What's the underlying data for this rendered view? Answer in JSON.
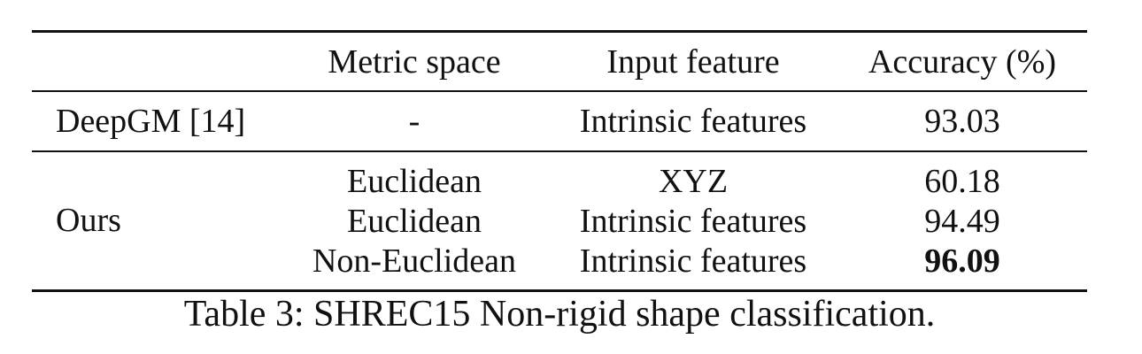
{
  "table": {
    "headers": {
      "method": "",
      "metric_space": "Metric space",
      "input_feature": "Input feature",
      "accuracy": "Accuracy (%)"
    },
    "rows": [
      {
        "method": "DeepGM [14]",
        "metric_space": "-",
        "input_feature": "Intrinsic features",
        "accuracy": "93.03"
      },
      {
        "method": "Ours",
        "metric_space": "Euclidean",
        "input_feature": "XYZ",
        "accuracy": "60.18"
      },
      {
        "method": "",
        "metric_space": "Euclidean",
        "input_feature": "Intrinsic features",
        "accuracy": "94.49"
      },
      {
        "method": "",
        "metric_space": "Non-Euclidean",
        "input_feature": "Intrinsic features",
        "accuracy": "96.09",
        "best": true
      }
    ]
  },
  "caption": "Table 3: SHREC15 Non-rigid shape classification."
}
